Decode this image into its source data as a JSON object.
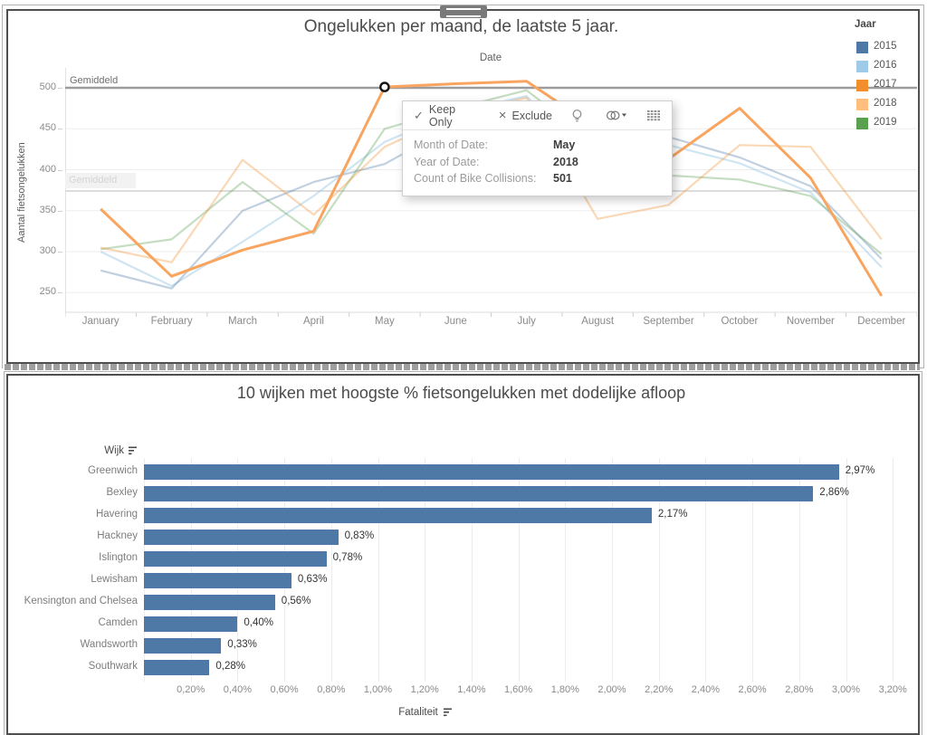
{
  "ui": {
    "top_panel": {
      "title": "Ongelukken per maand, de laatste 5 jaar.",
      "column_header": "Date",
      "y_axis_title": "Aantal fietsongelukken",
      "legend_title": "Jaar",
      "ref_label_strong": "Gemiddeld",
      "ref_label_faded": "Gemiddeld"
    },
    "tooltip": {
      "keep_only": "Keep Only",
      "exclude": "Exclude",
      "check_glyph": "✓",
      "close_glyph": "×",
      "rows": [
        {
          "label": "Month of Date:",
          "value": "May"
        },
        {
          "label": "Year of Date:",
          "value": "2018"
        },
        {
          "label": "Count of Bike Collisions:",
          "value": "501"
        }
      ]
    },
    "bottom_panel": {
      "title": "10 wijken met hoogste % fietsongelukken met dodelijke afloop",
      "row_header": "Wijk",
      "x_axis_title": "Fataliteit"
    }
  },
  "chart_data": [
    {
      "type": "line",
      "title": "Ongelukken per maand, de laatste 5 jaar.",
      "xlabel": "Date",
      "ylabel": "Aantal fietsongelukken",
      "x": [
        "January",
        "February",
        "March",
        "April",
        "May",
        "June",
        "July",
        "August",
        "September",
        "October",
        "November",
        "December"
      ],
      "y_ticks": [
        250,
        300,
        350,
        400,
        450,
        500
      ],
      "ylim": [
        240,
        515
      ],
      "grid": "horizontal-light",
      "legend_title": "Jaar",
      "legend_position": "top-right",
      "highlighted_series": "2018",
      "selected_point": {
        "series": "2018",
        "month": "May",
        "value": 501
      },
      "ref_lines": [
        {
          "label": "Gemiddeld",
          "value": 500,
          "style": "strong"
        },
        {
          "label": "Gemiddeld",
          "value": 374,
          "style": "dimmed"
        }
      ],
      "series": [
        {
          "name": "2015",
          "color": "#4e79a7",
          "dimmed": true,
          "opacity": 0.35,
          "values": [
            277,
            255,
            350,
            385,
            407,
            455,
            470,
            420,
            440,
            415,
            380,
            291
          ]
        },
        {
          "name": "2016",
          "color": "#a0cbe8",
          "dimmed": true,
          "opacity": 0.5,
          "values": [
            300,
            258,
            312,
            368,
            434,
            470,
            490,
            395,
            430,
            408,
            372,
            281
          ]
        },
        {
          "name": "2017",
          "color": "#f28e2b",
          "dimmed": true,
          "opacity": 0.35,
          "values": [
            305,
            287,
            412,
            345,
            428,
            468,
            488,
            340,
            357,
            430,
            428,
            315
          ]
        },
        {
          "name": "2018",
          "color": "#f9a45f",
          "dimmed": false,
          "opacity": 1.0,
          "values": [
            352,
            270,
            302,
            325,
            501,
            505,
            508,
            450,
            413,
            475,
            390,
            246
          ]
        },
        {
          "name": "2019",
          "color": "#59a14f",
          "dimmed": true,
          "opacity": 0.35,
          "values": [
            303,
            315,
            385,
            322,
            450,
            475,
            497,
            430,
            393,
            388,
            368,
            297
          ]
        }
      ],
      "legend_colors": {
        "2015": "#4e79a7",
        "2016": "#a0cbe8",
        "2017": "#f28e2b",
        "2018": "#ffbe7d",
        "2019": "#59a14f"
      }
    },
    {
      "type": "bar",
      "orientation": "horizontal",
      "title": "10 wijken met hoogste % fietsongelukken met dodelijke afloop",
      "xlabel": "Fataliteit",
      "ylabel": "Wijk",
      "categories": [
        "Greenwich",
        "Bexley",
        "Havering",
        "Hackney",
        "Islington",
        "Lewisham",
        "Kensington and Chelsea",
        "Camden",
        "Wandsworth",
        "Southwark"
      ],
      "values": [
        2.97,
        2.86,
        2.17,
        0.83,
        0.78,
        0.63,
        0.56,
        0.4,
        0.33,
        0.28
      ],
      "value_labels": [
        "2,97%",
        "2,86%",
        "2,17%",
        "0,83%",
        "0,78%",
        "0,63%",
        "0,56%",
        "0,40%",
        "0,33%",
        "0,28%"
      ],
      "x_tick_labels": [
        "0,20%",
        "0,40%",
        "0,60%",
        "0,80%",
        "1,00%",
        "1,20%",
        "1,40%",
        "1,60%",
        "1,80%",
        "2,00%",
        "2,20%",
        "2,40%",
        "2,60%",
        "2,80%",
        "3,00%",
        "3,20%"
      ],
      "xlim": [
        0,
        3.3
      ],
      "bar_color": "#4e79a7",
      "grid": "vertical-light"
    }
  ]
}
